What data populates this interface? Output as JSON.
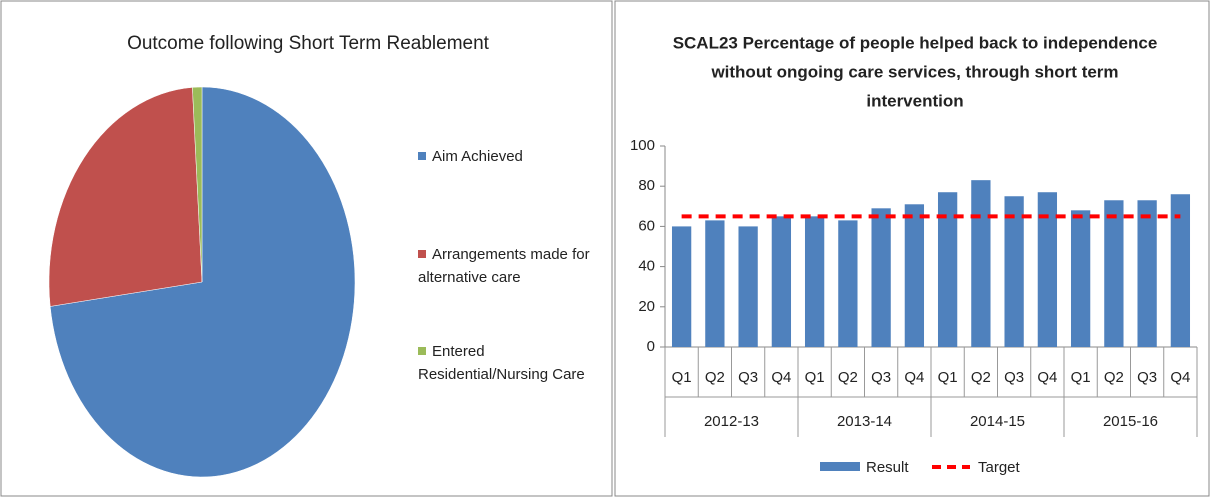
{
  "chart_data": [
    {
      "type": "pie",
      "title": "Outcome following Short Term Reablement",
      "categories": [
        "Aim Achieved",
        "Arrangements made for alternative care",
        "Entered Residential/Nursing Care"
      ],
      "values": [
        73,
        26,
        1
      ],
      "colors": [
        "#4f81bd",
        "#c0504d",
        "#9bbb59"
      ]
    },
    {
      "type": "bar_line",
      "title": [
        "SCAL23 Percentage of people helped back to independence",
        "without ongoing care services, through short term",
        "intervention"
      ],
      "categories": [
        "Q1",
        "Q2",
        "Q3",
        "Q4",
        "Q1",
        "Q2",
        "Q3",
        "Q4",
        "Q1",
        "Q2",
        "Q3",
        "Q4",
        "Q1",
        "Q2",
        "Q3",
        "Q4"
      ],
      "category_groups": [
        "2012-13",
        "2013-14",
        "2014-15",
        "2015-16"
      ],
      "series": [
        {
          "name": "Result",
          "type": "bar",
          "color": "#4f81bd",
          "values": [
            60,
            63,
            60,
            65,
            65,
            63,
            69,
            71,
            77,
            83,
            75,
            77,
            68,
            73,
            73,
            76
          ]
        },
        {
          "name": "Target",
          "type": "line",
          "dashed": true,
          "color": "#ff0000",
          "values": [
            65,
            65,
            65,
            65,
            65,
            65,
            65,
            65,
            65,
            65,
            65,
            65,
            65,
            65,
            65,
            65
          ]
        }
      ],
      "ylim": [
        0,
        100
      ],
      "yticks": [
        0,
        20,
        40,
        60,
        80,
        100
      ],
      "grid": false,
      "legend": "bottom"
    }
  ]
}
